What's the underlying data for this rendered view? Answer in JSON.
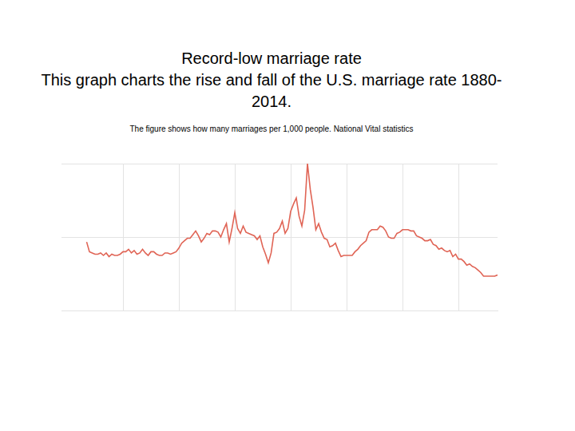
{
  "chart_data": {
    "type": "line",
    "title": "Record-low marriage rate",
    "subtitle": "This graph charts the rise and fall of the U.S. marriage rate 1880-2014.",
    "annotations": [
      "The figure shows how many marriages per 1,000 people. National Vital statistics"
    ],
    "x": [
      1867,
      1868,
      1869,
      1870,
      1871,
      1872,
      1873,
      1874,
      1875,
      1876,
      1877,
      1878,
      1879,
      1880,
      1881,
      1882,
      1883,
      1884,
      1885,
      1886,
      1887,
      1888,
      1889,
      1890,
      1891,
      1892,
      1893,
      1894,
      1895,
      1896,
      1897,
      1898,
      1899,
      1900,
      1901,
      1902,
      1903,
      1904,
      1905,
      1906,
      1907,
      1908,
      1909,
      1910,
      1911,
      1912,
      1913,
      1914,
      1915,
      1916,
      1917,
      1918,
      1919,
      1920,
      1921,
      1922,
      1923,
      1924,
      1925,
      1926,
      1927,
      1928,
      1929,
      1930,
      1931,
      1932,
      1933,
      1934,
      1935,
      1936,
      1937,
      1938,
      1939,
      1940,
      1941,
      1942,
      1943,
      1944,
      1945,
      1946,
      1947,
      1948,
      1949,
      1950,
      1951,
      1952,
      1953,
      1954,
      1955,
      1956,
      1957,
      1958,
      1959,
      1960,
      1961,
      1962,
      1963,
      1964,
      1965,
      1966,
      1967,
      1968,
      1969,
      1970,
      1971,
      1972,
      1973,
      1974,
      1975,
      1976,
      1977,
      1978,
      1979,
      1980,
      1981,
      1982,
      1983,
      1984,
      1985,
      1986,
      1987,
      1988,
      1989,
      1990,
      1991,
      1992,
      1993,
      1994,
      1995,
      1996,
      1997,
      1998,
      1999,
      2000,
      2001,
      2002,
      2003,
      2004,
      2005,
      2006,
      2007,
      2008,
      2009,
      2010,
      2011,
      2012,
      2013,
      2014
    ],
    "values": [
      9.6,
      8.8,
      8.7,
      8.6,
      8.6,
      8.7,
      8.5,
      8.7,
      8.4,
      8.6,
      8.5,
      8.5,
      8.6,
      8.8,
      8.8,
      9.0,
      8.7,
      8.9,
      8.6,
      8.7,
      9.0,
      8.7,
      8.5,
      8.8,
      8.8,
      8.6,
      8.5,
      8.5,
      8.7,
      8.7,
      8.6,
      8.7,
      8.8,
      9.1,
      9.5,
      9.7,
      9.9,
      9.9,
      10.2,
      10.5,
      10.1,
      9.6,
      9.9,
      10.3,
      10.2,
      10.5,
      10.5,
      10.4,
      10.0,
      10.6,
      11.1,
      9.6,
      10.7,
      12.0,
      10.7,
      10.3,
      10.9,
      10.4,
      10.3,
      10.2,
      10.1,
      9.8,
      10.1,
      9.2,
      8.6,
      7.9,
      8.7,
      10.3,
      10.4,
      10.7,
      11.3,
      10.3,
      10.7,
      12.1,
      12.7,
      13.2,
      11.7,
      10.9,
      12.2,
      16.0,
      13.9,
      12.4,
      10.6,
      11.1,
      10.4,
      9.9,
      9.8,
      9.2,
      9.3,
      9.5,
      8.9,
      8.4,
      8.5,
      8.5,
      8.5,
      8.5,
      8.8,
      9.0,
      9.3,
      9.5,
      9.7,
      10.4,
      10.6,
      10.6,
      10.6,
      10.9,
      10.8,
      10.5,
      10.0,
      9.9,
      9.9,
      10.3,
      10.4,
      10.6,
      10.6,
      10.6,
      10.5,
      10.5,
      10.1,
      10.0,
      9.9,
      9.7,
      9.7,
      9.8,
      9.4,
      9.3,
      9.0,
      9.1,
      8.9,
      8.8,
      8.9,
      8.4,
      8.6,
      8.2,
      8.2,
      8.0,
      7.7,
      7.8,
      7.6,
      7.5,
      7.3,
      7.1,
      6.8,
      6.8,
      6.8,
      6.8,
      6.8,
      6.9
    ],
    "color": "#e06455",
    "xlim": [
      1858,
      2014
    ],
    "xticks": [
      1880,
      1900,
      1920,
      1940,
      1960,
      1980,
      2000
    ],
    "ylim": [
      4,
      16
    ],
    "yticks": [
      4,
      10,
      16
    ],
    "grid": true,
    "tick_labels": false
  }
}
